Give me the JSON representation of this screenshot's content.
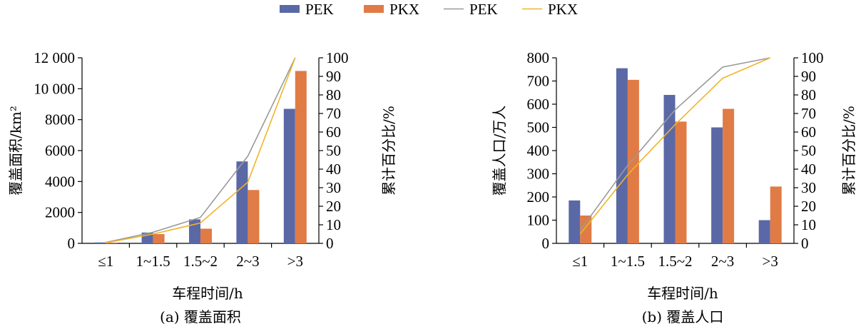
{
  "legend": [
    {
      "label": "PEK",
      "kind": "bar",
      "color": "#5b68a6"
    },
    {
      "label": "PKX",
      "kind": "bar",
      "color": "#e07b45"
    },
    {
      "label": "PEK",
      "kind": "line",
      "color": "#9a9a9a"
    },
    {
      "label": "PKX",
      "kind": "line",
      "color": "#f0b429"
    }
  ],
  "chart_data": [
    {
      "type": "bar",
      "caption": "(a) 覆盖面积",
      "xlabel": "车程时间/h",
      "ylabel": "覆盖面积/km²",
      "y2label": "累计百分比/%",
      "categories": [
        "≤1",
        "1~1.5",
        "1.5~2",
        "2~3",
        ">3"
      ],
      "ylim": [
        0,
        12000
      ],
      "yticks": [
        0,
        2000,
        4000,
        6000,
        8000,
        10000,
        12000
      ],
      "ytick_labels": [
        "0",
        "2000",
        "4000",
        "6000",
        "8000",
        "10 000",
        "12 000"
      ],
      "y2lim": [
        0,
        100
      ],
      "y2ticks": [
        0,
        10,
        20,
        30,
        40,
        50,
        60,
        70,
        80,
        90,
        100
      ],
      "series": [
        {
          "name": "PEK",
          "kind": "bar",
          "axis": "left",
          "color": "#5b68a6",
          "values": [
            60,
            700,
            1550,
            5300,
            8700
          ]
        },
        {
          "name": "PKX",
          "kind": "bar",
          "axis": "left",
          "color": "#e07b45",
          "values": [
            50,
            600,
            950,
            3450,
            11150
          ]
        },
        {
          "name": "PEK",
          "kind": "line",
          "axis": "right",
          "color": "#9a9a9a",
          "values": [
            0.5,
            6,
            14,
            47,
            100
          ]
        },
        {
          "name": "PKX",
          "kind": "line",
          "axis": "right",
          "color": "#f0b429",
          "values": [
            0.3,
            5,
            11,
            33,
            100
          ]
        }
      ]
    },
    {
      "type": "bar",
      "caption": "(b) 覆盖人口",
      "xlabel": "车程时间/h",
      "ylabel": "覆盖人口/万人",
      "y2label": "累计百分比/%",
      "categories": [
        "≤1",
        "1~1.5",
        "1.5~2",
        "2~3",
        ">3"
      ],
      "ylim": [
        0,
        800
      ],
      "yticks": [
        0,
        100,
        200,
        300,
        400,
        500,
        600,
        700,
        800
      ],
      "ytick_labels": [
        "0",
        "100",
        "200",
        "300",
        "400",
        "500",
        "600",
        "700",
        "800"
      ],
      "y2lim": [
        0,
        100
      ],
      "y2ticks": [
        0,
        10,
        20,
        30,
        40,
        50,
        60,
        70,
        80,
        90,
        100
      ],
      "series": [
        {
          "name": "PEK",
          "kind": "bar",
          "axis": "left",
          "color": "#5b68a6",
          "values": [
            185,
            755,
            640,
            500,
            100
          ]
        },
        {
          "name": "PKX",
          "kind": "bar",
          "axis": "left",
          "color": "#e07b45",
          "values": [
            120,
            705,
            525,
            580,
            245
          ]
        },
        {
          "name": "PEK",
          "kind": "line",
          "axis": "right",
          "color": "#9a9a9a",
          "values": [
            7,
            42,
            72,
            95,
            100
          ]
        },
        {
          "name": "PKX",
          "kind": "line",
          "axis": "right",
          "color": "#f0b429",
          "values": [
            5,
            37,
            64,
            89,
            100
          ]
        }
      ]
    }
  ]
}
